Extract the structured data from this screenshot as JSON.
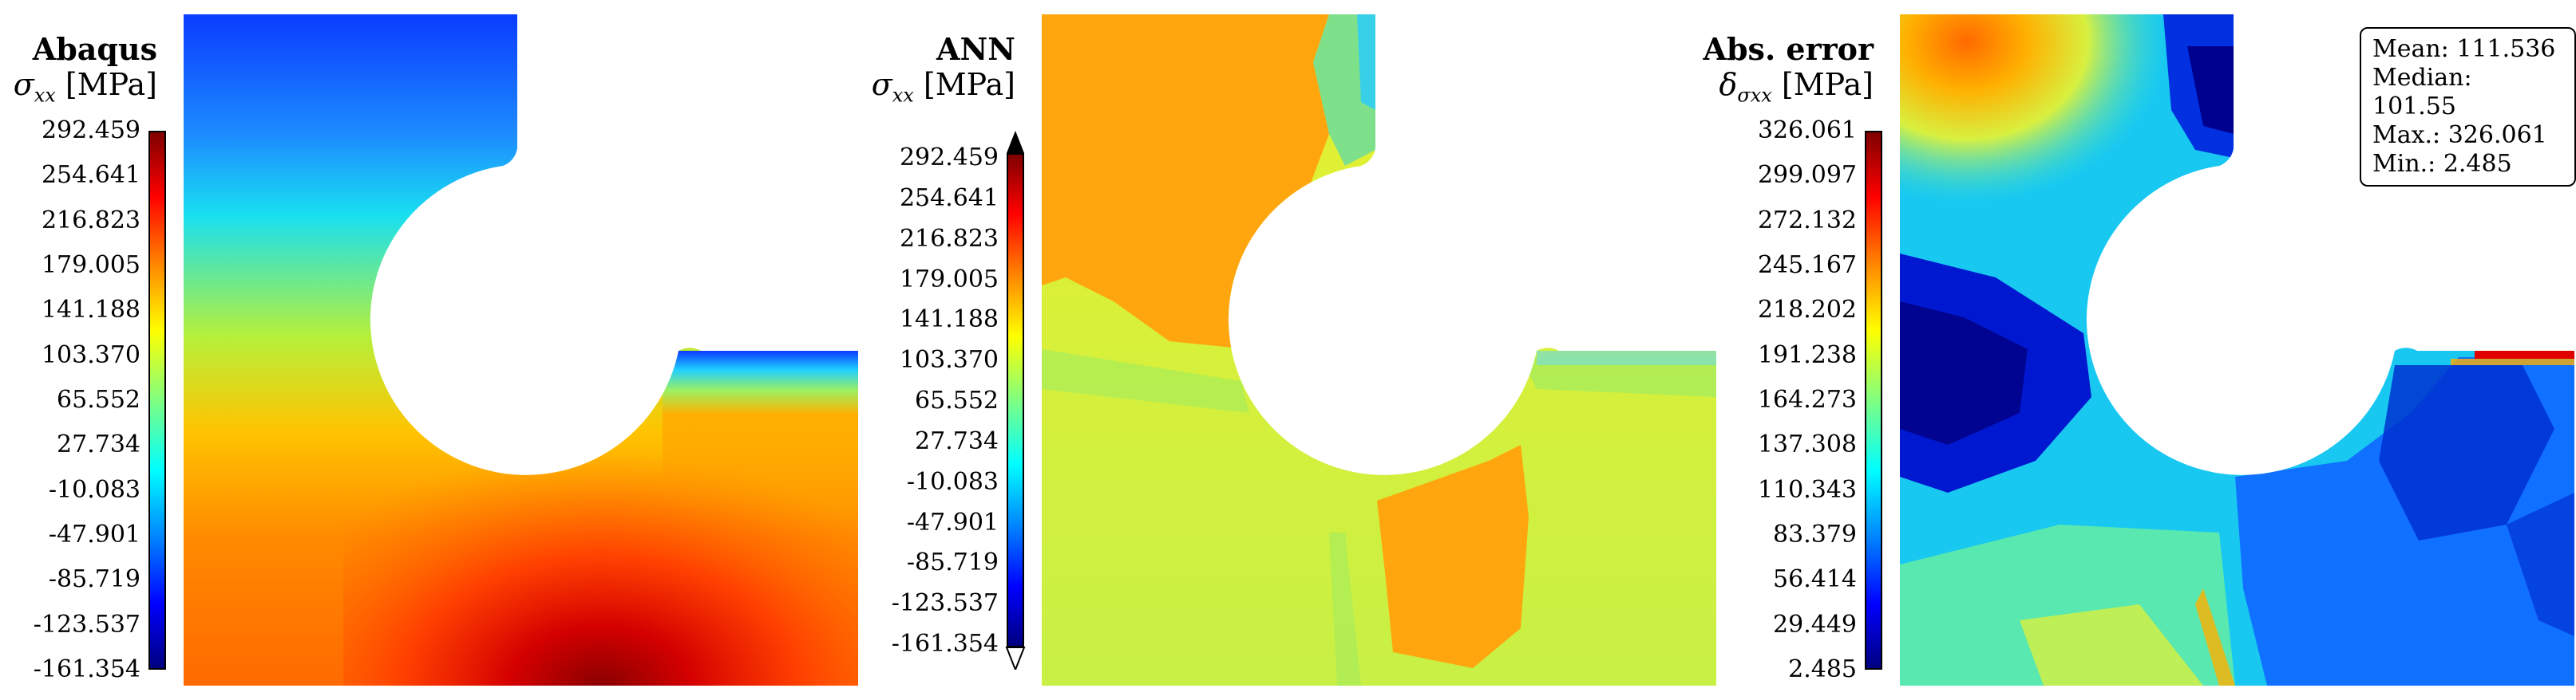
{
  "panels": [
    {
      "title": "Abaqus",
      "symbol": "σ",
      "subscript": "xx",
      "unit": "[MPa]",
      "ticks": [
        "292.459",
        "254.641",
        "216.823",
        "179.005",
        "141.188",
        "103.370",
        "65.552",
        "27.734",
        "-10.083",
        "-47.901",
        "-85.719",
        "-123.537",
        "-161.354"
      ]
    },
    {
      "title": "ANN",
      "symbol": "σ",
      "subscript": "xx",
      "unit": "[MPa]",
      "ticks": [
        "292.459",
        "254.641",
        "216.823",
        "179.005",
        "141.188",
        "103.370",
        "65.552",
        "27.734",
        "-10.083",
        "-47.901",
        "-85.719",
        "-123.537",
        "-161.354"
      ]
    },
    {
      "title": "Abs. error",
      "symbol": "δ",
      "subscript": "σxx",
      "unit": "[MPa]",
      "ticks": [
        "326.061",
        "299.097",
        "272.132",
        "245.167",
        "218.202",
        "191.238",
        "164.273",
        "137.308",
        "110.343",
        "83.379",
        "56.414",
        "29.449",
        "2.485"
      ]
    }
  ],
  "stats": {
    "mean": "Mean: 111.536",
    "median": "Median: 101.55",
    "max": "Max.: 326.061",
    "min": "Min.: 2.485"
  },
  "colormap": [
    "#00007f",
    "#0000ff",
    "#0080ff",
    "#00ffff",
    "#80ff80",
    "#ffff00",
    "#ff8000",
    "#ff0000",
    "#7f0000"
  ]
}
